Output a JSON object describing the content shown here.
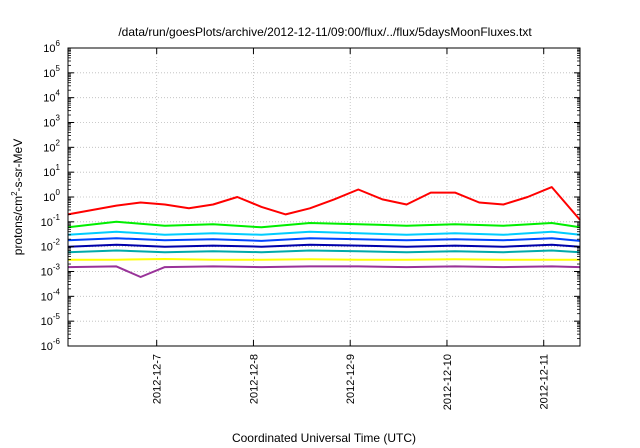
{
  "chart_data": {
    "type": "line",
    "title": "/data/run/goesPlots/archive/2012-12-11/09:00/flux/../flux/5daysMoonFluxes.txt",
    "xlabel": "Coordinated Universal Time (UTC)",
    "ylabel": "protons/cm²-s-sr-MeV",
    "ylabel_parts": {
      "pre": "protons/cm",
      "sup": "2",
      "post": "-s-sr-MeV"
    },
    "y_scale": "log",
    "ylim": [
      1e-06,
      1000000.0
    ],
    "y_ticks": [
      {
        "base": "10",
        "exp": "-6",
        "value": 1e-06
      },
      {
        "base": "10",
        "exp": "-5",
        "value": 1e-05
      },
      {
        "base": "10",
        "exp": "-4",
        "value": 0.0001
      },
      {
        "base": "10",
        "exp": "-3",
        "value": 0.001
      },
      {
        "base": "10",
        "exp": "-2",
        "value": 0.01
      },
      {
        "base": "10",
        "exp": "-1",
        "value": 0.1
      },
      {
        "base": "10",
        "exp": "0",
        "value": 1
      },
      {
        "base": "10",
        "exp": "1",
        "value": 10
      },
      {
        "base": "10",
        "exp": "2",
        "value": 100
      },
      {
        "base": "10",
        "exp": "3",
        "value": 1000
      },
      {
        "base": "10",
        "exp": "4",
        "value": 10000
      },
      {
        "base": "10",
        "exp": "5",
        "value": 100000
      },
      {
        "base": "10",
        "exp": "6",
        "value": 1000000
      }
    ],
    "xlim": [
      "2012-12-06 02:00",
      "2012-12-11 09:00"
    ],
    "x_ticks": [
      "2012-12-7",
      "2012-12-8",
      "2012-12-9",
      "2012-12-10",
      "2012-12-11"
    ],
    "x_tick_dates": [
      "2012-12-07 00:00",
      "2012-12-08 00:00",
      "2012-12-09 00:00",
      "2012-12-10 00:00",
      "2012-12-11 00:00"
    ],
    "grid": true,
    "legend": "none",
    "series": [
      {
        "color": "#ff0000",
        "x": [
          "2012-12-06 02:00",
          "2012-12-06 08:00",
          "2012-12-06 14:00",
          "2012-12-06 20:00",
          "2012-12-07 02:00",
          "2012-12-07 08:00",
          "2012-12-07 14:00",
          "2012-12-07 20:00",
          "2012-12-08 02:00",
          "2012-12-08 08:00",
          "2012-12-08 14:00",
          "2012-12-08 20:00",
          "2012-12-09 02:00",
          "2012-12-09 08:00",
          "2012-12-09 14:00",
          "2012-12-09 20:00",
          "2012-12-10 02:00",
          "2012-12-10 08:00",
          "2012-12-10 14:00",
          "2012-12-10 20:00",
          "2012-12-11 02:00",
          "2012-12-11 09:00"
        ],
        "values": [
          0.2,
          0.3,
          0.45,
          0.6,
          0.5,
          0.35,
          0.5,
          1.0,
          0.4,
          0.2,
          0.35,
          0.8,
          2.0,
          0.8,
          0.5,
          1.5,
          1.5,
          0.6,
          0.5,
          1.0,
          2.5,
          0.12
        ]
      },
      {
        "color": "#00ee00",
        "x": [
          "2012-12-06 02:00",
          "2012-12-06 14:00",
          "2012-12-07 02:00",
          "2012-12-07 14:00",
          "2012-12-08 02:00",
          "2012-12-08 14:00",
          "2012-12-09 02:00",
          "2012-12-09 14:00",
          "2012-12-10 02:00",
          "2012-12-10 14:00",
          "2012-12-11 02:00",
          "2012-12-11 09:00"
        ],
        "values": [
          0.06,
          0.1,
          0.07,
          0.08,
          0.06,
          0.09,
          0.08,
          0.07,
          0.08,
          0.07,
          0.09,
          0.06
        ]
      },
      {
        "color": "#00ccff",
        "x": [
          "2012-12-06 02:00",
          "2012-12-06 14:00",
          "2012-12-07 02:00",
          "2012-12-07 14:00",
          "2012-12-08 02:00",
          "2012-12-08 14:00",
          "2012-12-09 02:00",
          "2012-12-09 14:00",
          "2012-12-10 02:00",
          "2012-12-10 14:00",
          "2012-12-11 02:00",
          "2012-12-11 09:00"
        ],
        "values": [
          0.03,
          0.04,
          0.03,
          0.035,
          0.03,
          0.04,
          0.035,
          0.03,
          0.035,
          0.03,
          0.04,
          0.03
        ]
      },
      {
        "color": "#0044ff",
        "x": [
          "2012-12-06 02:00",
          "2012-12-06 14:00",
          "2012-12-07 02:00",
          "2012-12-07 14:00",
          "2012-12-08 02:00",
          "2012-12-08 14:00",
          "2012-12-09 02:00",
          "2012-12-09 14:00",
          "2012-12-10 02:00",
          "2012-12-10 14:00",
          "2012-12-11 02:00",
          "2012-12-11 09:00"
        ],
        "values": [
          0.018,
          0.022,
          0.018,
          0.02,
          0.017,
          0.022,
          0.02,
          0.018,
          0.02,
          0.018,
          0.022,
          0.017
        ]
      },
      {
        "color": "#0000aa",
        "x": [
          "2012-12-06 02:00",
          "2012-12-06 14:00",
          "2012-12-07 02:00",
          "2012-12-07 14:00",
          "2012-12-08 02:00",
          "2012-12-08 14:00",
          "2012-12-09 02:00",
          "2012-12-09 14:00",
          "2012-12-10 02:00",
          "2012-12-10 14:00",
          "2012-12-11 02:00",
          "2012-12-11 09:00"
        ],
        "values": [
          0.01,
          0.012,
          0.01,
          0.011,
          0.01,
          0.012,
          0.011,
          0.01,
          0.011,
          0.01,
          0.012,
          0.01
        ]
      },
      {
        "color": "#00aaaa",
        "x": [
          "2012-12-06 02:00",
          "2012-12-06 14:00",
          "2012-12-07 02:00",
          "2012-12-07 14:00",
          "2012-12-08 02:00",
          "2012-12-08 14:00",
          "2012-12-09 02:00",
          "2012-12-09 14:00",
          "2012-12-10 02:00",
          "2012-12-10 14:00",
          "2012-12-11 02:00",
          "2012-12-11 09:00"
        ],
        "values": [
          0.006,
          0.007,
          0.006,
          0.0065,
          0.006,
          0.007,
          0.0065,
          0.006,
          0.0065,
          0.006,
          0.007,
          0.006
        ]
      },
      {
        "color": "#ffff00",
        "x": [
          "2012-12-06 02:00",
          "2012-12-06 14:00",
          "2012-12-07 02:00",
          "2012-12-07 14:00",
          "2012-12-08 02:00",
          "2012-12-08 14:00",
          "2012-12-09 02:00",
          "2012-12-09 14:00",
          "2012-12-10 02:00",
          "2012-12-10 14:00",
          "2012-12-11 02:00",
          "2012-12-11 09:00"
        ],
        "values": [
          0.003,
          0.003,
          0.0032,
          0.003,
          0.003,
          0.0031,
          0.003,
          0.003,
          0.0031,
          0.003,
          0.003,
          0.003
        ]
      },
      {
        "color": "#993399",
        "x": [
          "2012-12-06 02:00",
          "2012-12-06 14:00",
          "2012-12-06 20:00",
          "2012-12-07 02:00",
          "2012-12-07 14:00",
          "2012-12-08 02:00",
          "2012-12-08 14:00",
          "2012-12-09 02:00",
          "2012-12-09 14:00",
          "2012-12-10 02:00",
          "2012-12-10 14:00",
          "2012-12-11 02:00",
          "2012-12-11 09:00"
        ],
        "values": [
          0.0015,
          0.0016,
          0.0006,
          0.0015,
          0.0016,
          0.0015,
          0.0016,
          0.0016,
          0.0015,
          0.0016,
          0.0015,
          0.0016,
          0.0015
        ]
      }
    ]
  }
}
